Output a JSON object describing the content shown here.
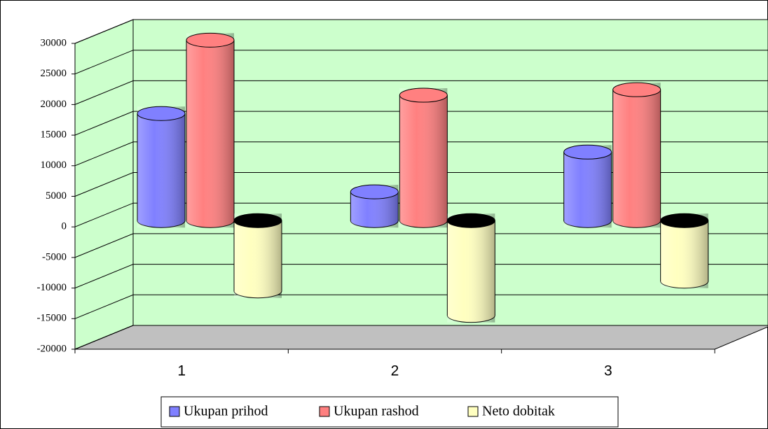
{
  "chart_data": {
    "type": "cylinder3d",
    "categories": [
      "1",
      "2",
      "3"
    ],
    "series": [
      {
        "name": "Ukupan prihod",
        "color": "#8080ff",
        "values": [
          17500,
          4700,
          11200
        ]
      },
      {
        "name": "Ukupan rashod",
        "color": "#ff8080",
        "values": [
          29500,
          20500,
          21400
        ]
      },
      {
        "name": "Neto dobitak",
        "color": "#ffffc0",
        "values": [
          -11500,
          -15500,
          -9900
        ]
      }
    ],
    "ylim": [
      -20000,
      30000
    ],
    "yticks": [
      -20000,
      -15000,
      -10000,
      -5000,
      0,
      5000,
      10000,
      15000,
      20000,
      25000,
      30000
    ],
    "grid": true,
    "wall_color": "#ccffcc",
    "floor_color": "#c0c0c0",
    "legend": "bottom"
  }
}
